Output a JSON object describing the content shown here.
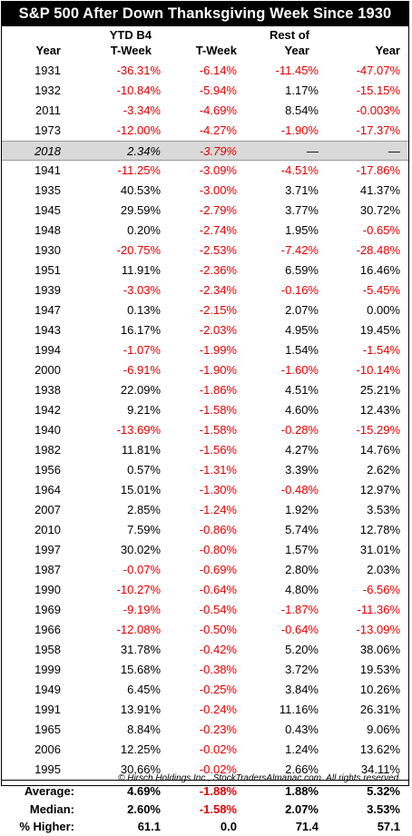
{
  "title": "S&P 500 After Down Thanksgiving Week Since 1930",
  "headers": {
    "year": "Year",
    "ytd_line1": "YTD B4",
    "ytd_line2": "T-Week",
    "tweek": "T-Week",
    "rest_line1": "Rest of",
    "rest_line2": "Year",
    "yr": "Year"
  },
  "rows": [
    {
      "year": "1931",
      "ytd": "-36.31%",
      "tweek": "-6.14%",
      "rest": "-11.45%",
      "yr": "-47.07%"
    },
    {
      "year": "1932",
      "ytd": "-10.84%",
      "tweek": "-5.94%",
      "rest": "1.17%",
      "yr": "-15.15%"
    },
    {
      "year": "2011",
      "ytd": "-3.34%",
      "tweek": "-4.69%",
      "rest": "8.54%",
      "yr": "-0.003%"
    },
    {
      "year": "1973",
      "ytd": "-12.00%",
      "tweek": "-4.27%",
      "rest": "-1.90%",
      "yr": "-17.37%"
    },
    {
      "year": "2018",
      "ytd": "2.34%",
      "tweek": "-3.79%",
      "rest": "—",
      "yr": "—",
      "highlight": true
    },
    {
      "year": "1941",
      "ytd": "-11.25%",
      "tweek": "-3.09%",
      "rest": "-4.51%",
      "yr": "-17.86%"
    },
    {
      "year": "1935",
      "ytd": "40.53%",
      "tweek": "-3.00%",
      "rest": "3.71%",
      "yr": "41.37%"
    },
    {
      "year": "1945",
      "ytd": "29.59%",
      "tweek": "-2.79%",
      "rest": "3.77%",
      "yr": "30.72%"
    },
    {
      "year": "1948",
      "ytd": "0.20%",
      "tweek": "-2.74%",
      "rest": "1.95%",
      "yr": "-0.65%"
    },
    {
      "year": "1930",
      "ytd": "-20.75%",
      "tweek": "-2.53%",
      "rest": "-7.42%",
      "yr": "-28.48%"
    },
    {
      "year": "1951",
      "ytd": "11.91%",
      "tweek": "-2.36%",
      "rest": "6.59%",
      "yr": "16.46%"
    },
    {
      "year": "1939",
      "ytd": "-3.03%",
      "tweek": "-2.34%",
      "rest": "-0.16%",
      "yr": "-5.45%"
    },
    {
      "year": "1947",
      "ytd": "0.13%",
      "tweek": "-2.15%",
      "rest": "2.07%",
      "yr": "0.00%"
    },
    {
      "year": "1943",
      "ytd": "16.17%",
      "tweek": "-2.03%",
      "rest": "4.95%",
      "yr": "19.45%"
    },
    {
      "year": "1994",
      "ytd": "-1.07%",
      "tweek": "-1.99%",
      "rest": "1.54%",
      "yr": "-1.54%"
    },
    {
      "year": "2000",
      "ytd": "-6.91%",
      "tweek": "-1.90%",
      "rest": "-1.60%",
      "yr": "-10.14%"
    },
    {
      "year": "1938",
      "ytd": "22.09%",
      "tweek": "-1.86%",
      "rest": "4.51%",
      "yr": "25.21%"
    },
    {
      "year": "1942",
      "ytd": "9.21%",
      "tweek": "-1.58%",
      "rest": "4.60%",
      "yr": "12.43%"
    },
    {
      "year": "1940",
      "ytd": "-13.69%",
      "tweek": "-1.58%",
      "rest": "-0.28%",
      "yr": "-15.29%"
    },
    {
      "year": "1982",
      "ytd": "11.81%",
      "tweek": "-1.56%",
      "rest": "4.27%",
      "yr": "14.76%"
    },
    {
      "year": "1956",
      "ytd": "0.57%",
      "tweek": "-1.31%",
      "rest": "3.39%",
      "yr": "2.62%"
    },
    {
      "year": "1964",
      "ytd": "15.01%",
      "tweek": "-1.30%",
      "rest": "-0.48%",
      "yr": "12.97%"
    },
    {
      "year": "2007",
      "ytd": "2.85%",
      "tweek": "-1.24%",
      "rest": "1.92%",
      "yr": "3.53%"
    },
    {
      "year": "2010",
      "ytd": "7.59%",
      "tweek": "-0.86%",
      "rest": "5.74%",
      "yr": "12.78%"
    },
    {
      "year": "1997",
      "ytd": "30.02%",
      "tweek": "-0.80%",
      "rest": "1.57%",
      "yr": "31.01%"
    },
    {
      "year": "1987",
      "ytd": "-0.07%",
      "tweek": "-0.69%",
      "rest": "2.80%",
      "yr": "2.03%"
    },
    {
      "year": "1990",
      "ytd": "-10.27%",
      "tweek": "-0.64%",
      "rest": "4.80%",
      "yr": "-6.56%"
    },
    {
      "year": "1969",
      "ytd": "-9.19%",
      "tweek": "-0.54%",
      "rest": "-1.87%",
      "yr": "-11.36%"
    },
    {
      "year": "1966",
      "ytd": "-12.08%",
      "tweek": "-0.50%",
      "rest": "-0.64%",
      "yr": "-13.09%"
    },
    {
      "year": "1958",
      "ytd": "31.78%",
      "tweek": "-0.42%",
      "rest": "5.20%",
      "yr": "38.06%"
    },
    {
      "year": "1999",
      "ytd": "15.68%",
      "tweek": "-0.38%",
      "rest": "3.72%",
      "yr": "19.53%"
    },
    {
      "year": "1949",
      "ytd": "6.45%",
      "tweek": "-0.25%",
      "rest": "3.84%",
      "yr": "10.26%"
    },
    {
      "year": "1991",
      "ytd": "13.91%",
      "tweek": "-0.24%",
      "rest": "11.16%",
      "yr": "26.31%"
    },
    {
      "year": "1965",
      "ytd": "8.84%",
      "tweek": "-0.23%",
      "rest": "0.43%",
      "yr": "9.06%"
    },
    {
      "year": "2006",
      "ytd": "12.25%",
      "tweek": "-0.02%",
      "rest": "1.24%",
      "yr": "13.62%"
    },
    {
      "year": "1995",
      "ytd": "30.66%",
      "tweek": "-0.02%",
      "rest": "2.66%",
      "yr": "34.11%"
    }
  ],
  "summary": [
    {
      "label": "Average:",
      "ytd": "4.69%",
      "tweek": "-1.88%",
      "rest": "1.88%",
      "yr": "5.32%"
    },
    {
      "label": "Median:",
      "ytd": "2.60%",
      "tweek": "-1.58%",
      "rest": "2.07%",
      "yr": "3.53%"
    },
    {
      "label": "% Higher:",
      "ytd": "61.1",
      "tweek": "0.0",
      "rest": "71.4",
      "yr": "57.1"
    }
  ],
  "footer": "© Hirsch Holdings Inc., StockTradersAlmanac.com. All rights reserved.",
  "colors": {
    "negative": "#e00000",
    "positive": "#000000",
    "highlight_row": "#d9d9d9",
    "title_bg": "#000000"
  }
}
